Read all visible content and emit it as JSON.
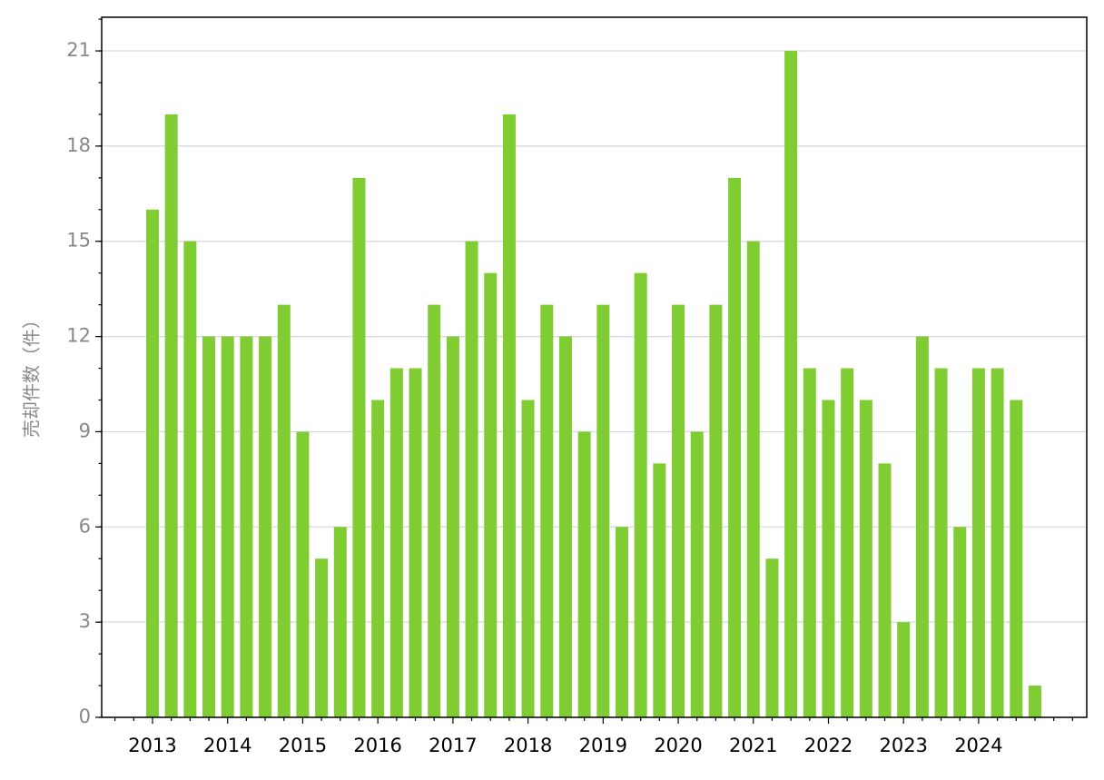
{
  "chart_data": {
    "type": "bar",
    "y_label": "売却件数（件）",
    "categories": [
      "2013",
      null,
      null,
      null,
      "2014",
      null,
      null,
      null,
      "2015",
      null,
      null,
      null,
      "2016",
      null,
      null,
      null,
      "2017",
      null,
      null,
      null,
      "2018",
      null,
      null,
      null,
      "2019",
      null,
      null,
      null,
      "2020",
      null,
      null,
      null,
      "2021",
      null,
      null,
      null,
      "2022",
      null,
      null,
      null,
      "2023",
      null,
      null,
      null,
      "2024",
      null,
      null,
      null
    ],
    "values": [
      16,
      19,
      15,
      12,
      12,
      12,
      12,
      13,
      9,
      5,
      6,
      17,
      10,
      11,
      11,
      13,
      12,
      15,
      14,
      19,
      10,
      13,
      12,
      9,
      13,
      6,
      14,
      8,
      13,
      9,
      13,
      17,
      15,
      5,
      21,
      11,
      10,
      11,
      10,
      8,
      3,
      12,
      11,
      6,
      11,
      11,
      10,
      1
    ],
    "color": "#7fcc33",
    "ylim": [
      0,
      22.06
    ],
    "yticks": [
      0,
      3,
      6,
      9,
      12,
      15,
      18,
      21
    ],
    "grid": true
  }
}
